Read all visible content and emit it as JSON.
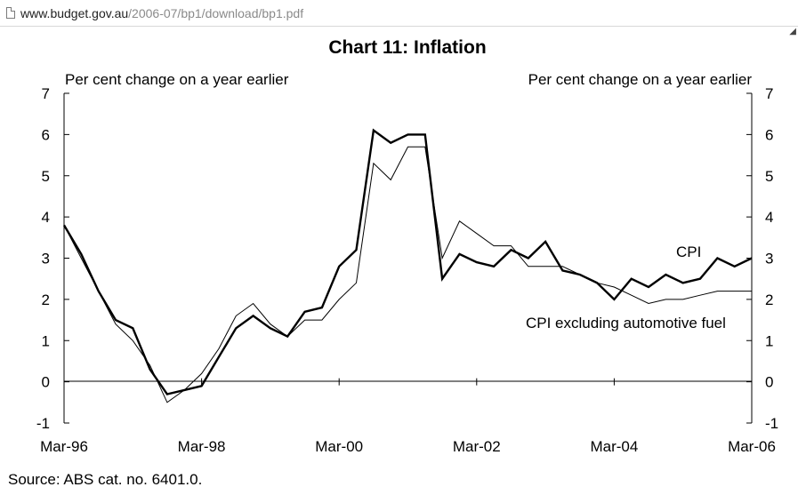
{
  "browser": {
    "url_domain": "www.budget.gov.au",
    "url_path": "/2006-07/bp1/download/bp1.pdf"
  },
  "source_note": "Source: ABS cat. no. 6401.0.",
  "chart_data": {
    "type": "line",
    "title": "Chart 11: Inflation",
    "ylabel_left": "Per cent change on a year earlier",
    "ylabel_right": "Per cent change on a year earlier",
    "ylim": [
      -1,
      7
    ],
    "yticks": [
      "-1",
      "0",
      "1",
      "2",
      "3",
      "4",
      "5",
      "6",
      "7"
    ],
    "xtick_labels": [
      "Mar-96",
      "Mar-98",
      "Mar-00",
      "Mar-02",
      "Mar-04",
      "Mar-06"
    ],
    "x": [
      "Mar-96",
      "Jun-96",
      "Sep-96",
      "Dec-96",
      "Mar-97",
      "Jun-97",
      "Sep-97",
      "Dec-97",
      "Mar-98",
      "Jun-98",
      "Sep-98",
      "Dec-98",
      "Mar-99",
      "Jun-99",
      "Sep-99",
      "Dec-99",
      "Mar-00",
      "Jun-00",
      "Sep-00",
      "Dec-00",
      "Mar-01",
      "Jun-01",
      "Sep-01",
      "Dec-01",
      "Mar-02",
      "Jun-02",
      "Sep-02",
      "Dec-02",
      "Mar-03",
      "Jun-03",
      "Sep-03",
      "Dec-03",
      "Mar-04",
      "Jun-04",
      "Sep-04",
      "Dec-04",
      "Mar-05",
      "Jun-05",
      "Sep-05",
      "Dec-05",
      "Mar-06"
    ],
    "series": [
      {
        "name": "CPI",
        "color": "#000000",
        "values": [
          3.8,
          3.1,
          2.2,
          1.5,
          1.3,
          0.3,
          -0.3,
          -0.2,
          -0.1,
          0.6,
          1.3,
          1.6,
          1.3,
          1.1,
          1.7,
          1.8,
          2.8,
          3.2,
          6.1,
          5.8,
          6.0,
          6.0,
          2.5,
          3.1,
          2.9,
          2.8,
          3.2,
          3.0,
          3.4,
          2.7,
          2.6,
          2.4,
          2.0,
          2.5,
          2.3,
          2.6,
          2.4,
          2.5,
          3.0,
          2.8,
          3.0
        ]
      },
      {
        "name": "CPI excluding automotive fuel",
        "color": "#000000",
        "values": [
          3.8,
          3.0,
          2.2,
          1.4,
          1.0,
          0.4,
          -0.5,
          -0.2,
          0.2,
          0.8,
          1.6,
          1.9,
          1.4,
          1.1,
          1.5,
          1.5,
          2.0,
          2.4,
          5.3,
          4.9,
          5.7,
          5.7,
          3.0,
          3.9,
          3.6,
          3.3,
          3.3,
          2.8,
          2.8,
          2.8,
          2.6,
          2.4,
          2.3,
          2.1,
          1.9,
          2.0,
          2.0,
          2.1,
          2.2,
          2.2,
          2.2
        ]
      }
    ],
    "annotations": [
      "CPI",
      "CPI excluding automotive fuel"
    ],
    "grid": false,
    "legend": "inline labels"
  }
}
